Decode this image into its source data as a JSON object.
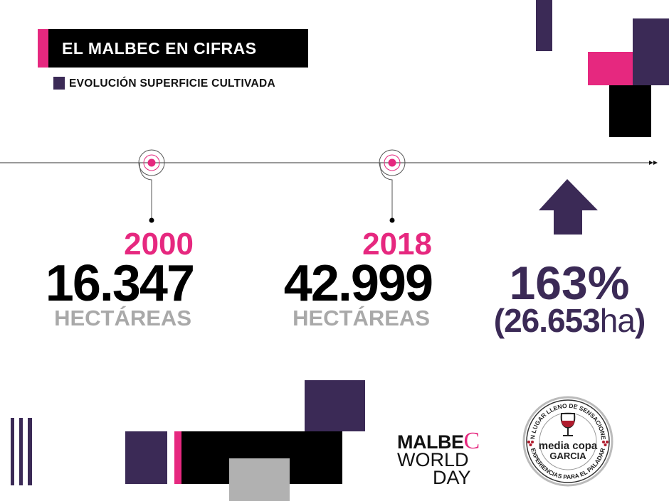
{
  "header": {
    "title": "EL MALBEC EN CIFRAS",
    "subtitle": "EVOLUCIÓN SUPERFICIE CULTIVADA"
  },
  "timeline": [
    {
      "year": "2000",
      "value": "16.347",
      "unit": "HECTÁREAS"
    },
    {
      "year": "2018",
      "value": "42.999",
      "unit": "HECTÁREAS"
    }
  ],
  "growth": {
    "percent": "163%",
    "open_paren": "(",
    "amount": "26.653",
    "amount_unit": "ha",
    "close_paren": ")",
    "icon": "arrow-up-icon"
  },
  "logos": {
    "malbec_world_day": {
      "line1": "MALBE",
      "c": "C",
      "line2": "WORLD",
      "line3": "DAY"
    },
    "media_copa": {
      "top_ring": "UN LUGAR LLENO DE SENSACIONES",
      "bottom_ring": "EXPERIENCIAS PARA EL PALADAR",
      "name1": "media copa",
      "name2": "GARCIA"
    }
  },
  "colors": {
    "purple": "#3b2a56",
    "pink": "#e6287f",
    "black": "#000000",
    "gray": "#a9a9a9"
  }
}
